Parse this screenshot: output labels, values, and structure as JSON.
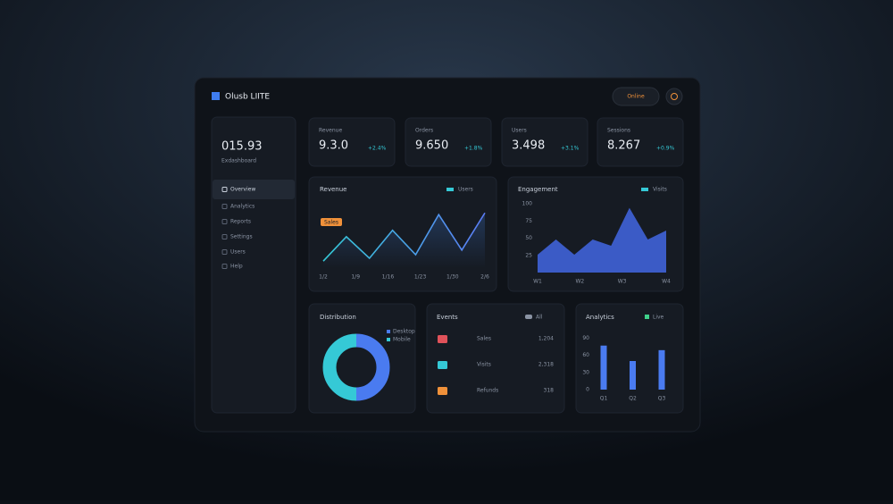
{
  "header": {
    "title": "Olusb LIITE",
    "status": "Online"
  },
  "sidebar": {
    "balance": "015.93",
    "balance_label": "Exdashboard",
    "nav": [
      "Overview",
      "Analytics",
      "Reports",
      "Settings",
      "Users",
      "Help"
    ]
  },
  "stats": [
    {
      "label": "Revenue",
      "value": "9.3.0",
      "change": "+2.4%"
    },
    {
      "label": "Orders",
      "value": "9.650",
      "change": "+1.8%"
    },
    {
      "label": "Users",
      "value": "3.498",
      "change": "+3.1%"
    },
    {
      "label": "Sessions",
      "value": "8.267",
      "change": "+0.9%"
    }
  ],
  "line_panel": {
    "title": "Revenue",
    "legend": "Users",
    "badge": "Sales",
    "color": "#5b7cf5",
    "x": [
      0,
      1,
      2,
      3,
      4,
      5,
      6,
      7
    ],
    "values": [
      12,
      54,
      17,
      65,
      23,
      92,
      31,
      95
    ],
    "xlim": [
      0,
      7
    ],
    "ylim": [
      0,
      100
    ],
    "xticks": [
      {
        "value": 0,
        "label": "1/2"
      },
      {
        "value": 1.4,
        "label": "1/9"
      },
      {
        "value": 2.8,
        "label": "1/16"
      },
      {
        "value": 4.2,
        "label": "1/23"
      },
      {
        "value": 5.6,
        "label": "1/30"
      },
      {
        "value": 7,
        "label": "2/6"
      }
    ]
  },
  "area_panel": {
    "title": "Engagement",
    "legend": "Visits",
    "color": "#3f63d8",
    "x": [
      0,
      1,
      2,
      3,
      4,
      5,
      6,
      7
    ],
    "values": [
      26,
      48,
      26,
      48,
      39,
      94,
      48,
      61
    ],
    "xlim": [
      0,
      7
    ],
    "ylim": [
      0,
      100
    ],
    "yticks": [
      25,
      50,
      75,
      100
    ],
    "xticks": [
      {
        "value": 0,
        "label": "W1"
      },
      {
        "value": 2.3,
        "label": "W2"
      },
      {
        "value": 4.6,
        "label": "W3"
      },
      {
        "value": 7,
        "label": "W4"
      }
    ]
  },
  "donut_panel": {
    "title": "Distribution",
    "categories": [
      "Desktop",
      "Mobile"
    ],
    "values": [
      50,
      50
    ],
    "colors": [
      "#4a7bf0",
      "#35c9d6"
    ]
  },
  "list_panel": {
    "title": "Events",
    "badge": "All",
    "rows": [
      {
        "label": "Sales",
        "value": "1,204",
        "color": "#e0525a"
      },
      {
        "label": "Visits",
        "value": "2,318",
        "color": "#35c9d6"
      },
      {
        "label": "Refunds",
        "value": "318",
        "color": "#f0913a"
      }
    ]
  },
  "bar_panel": {
    "title": "Analytics",
    "legend": "Live",
    "color": "#4a7bf0",
    "categories": [
      "Q1",
      "Q2",
      "Q3"
    ],
    "values": [
      77,
      50,
      69
    ],
    "ylim": [
      0,
      100
    ],
    "yticks": [
      0,
      30,
      60,
      90
    ]
  }
}
